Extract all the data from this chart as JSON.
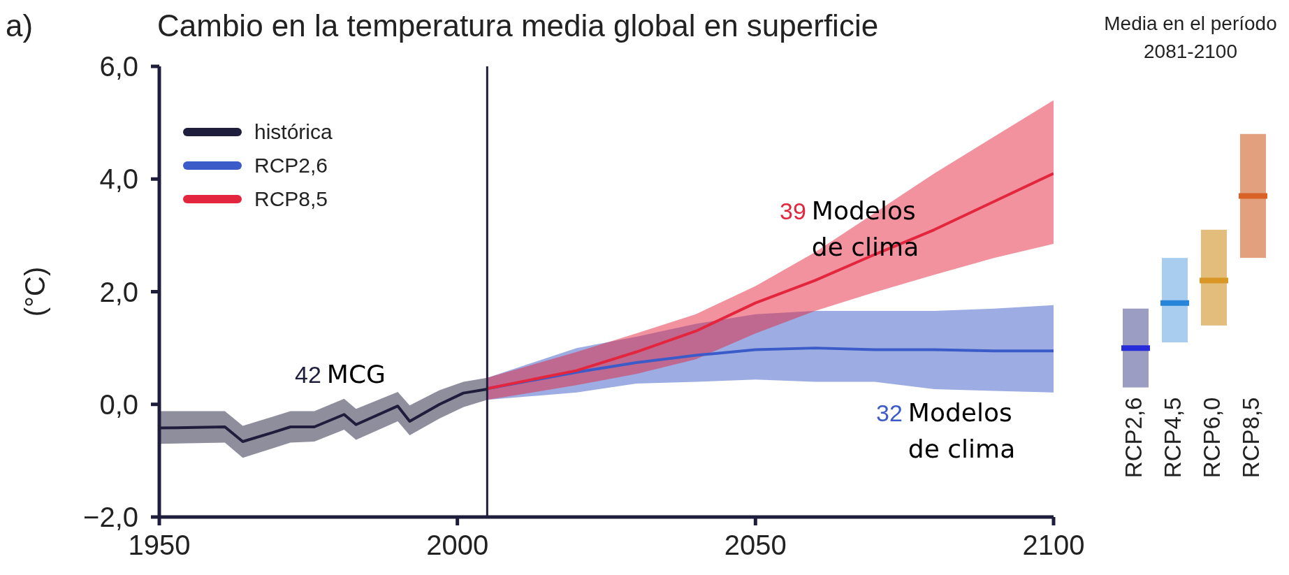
{
  "chart_data": [
    {
      "type": "line",
      "title": "Cambio en la temperatura media global en superficie",
      "ylabel": "(°C)",
      "xlim": [
        1950,
        2100
      ],
      "xticks": [
        1950,
        2000,
        2050,
        2100
      ],
      "ylim": [
        -2,
        6
      ],
      "yticks": [
        {
          "value": -2,
          "label": "−2,0"
        },
        {
          "value": 0,
          "label": "0,0"
        },
        {
          "value": 2,
          "label": "2,0"
        },
        {
          "value": 4,
          "label": "4,0"
        },
        {
          "value": 6,
          "label": "6,0"
        }
      ],
      "legend": "top left",
      "series": [
        {
          "name": "histórica",
          "color": "#1e1e3c",
          "x": [
            1950,
            1961,
            1964,
            1969,
            1972,
            1976,
            1981,
            1983,
            1990,
            1992,
            1997,
            2001,
            2005
          ],
          "values": [
            -0.42,
            -0.4,
            -0.66,
            -0.5,
            -0.4,
            -0.4,
            -0.18,
            -0.36,
            -0.03,
            -0.3,
            0.0,
            0.2,
            0.27
          ],
          "lower": [
            -0.7,
            -0.68,
            -0.95,
            -0.78,
            -0.68,
            -0.66,
            -0.45,
            -0.63,
            -0.3,
            -0.55,
            -0.25,
            -0.05,
            0.08
          ],
          "upper": [
            -0.12,
            -0.12,
            -0.38,
            -0.22,
            -0.12,
            -0.12,
            0.1,
            -0.08,
            0.22,
            -0.02,
            0.25,
            0.4,
            0.47
          ]
        },
        {
          "name": "RCP2,6",
          "color": "#3b5bc8",
          "x": [
            2005,
            2020,
            2030,
            2040,
            2050,
            2060,
            2070,
            2080,
            2090,
            2100
          ],
          "values": [
            0.28,
            0.57,
            0.74,
            0.87,
            0.97,
            1.0,
            0.97,
            0.97,
            0.95,
            0.95
          ],
          "lower": [
            0.08,
            0.21,
            0.37,
            0.4,
            0.44,
            0.4,
            0.4,
            0.27,
            0.24,
            0.21
          ],
          "upper": [
            0.47,
            1.0,
            1.2,
            1.43,
            1.6,
            1.66,
            1.66,
            1.66,
            1.7,
            1.76
          ]
        },
        {
          "name": "RCP8,5",
          "color": "#e3263e",
          "x": [
            2005,
            2020,
            2030,
            2040,
            2050,
            2060,
            2070,
            2080,
            2090,
            2100
          ],
          "values": [
            0.28,
            0.6,
            0.93,
            1.3,
            1.8,
            2.2,
            2.66,
            3.1,
            3.6,
            4.1
          ],
          "lower": [
            0.08,
            0.34,
            0.54,
            0.8,
            1.26,
            1.66,
            1.99,
            2.3,
            2.6,
            2.85
          ],
          "upper": [
            0.47,
            0.93,
            1.26,
            1.6,
            2.1,
            2.7,
            3.4,
            4.1,
            4.75,
            5.4
          ]
        }
      ],
      "ref_lines": [
        {
          "axis": "x",
          "value": 2005,
          "color": "#1e1e3c"
        }
      ],
      "annotations": [
        "a)",
        "42 MCG",
        "39 Modelos de clima",
        "32 Modelos de clima"
      ]
    },
    {
      "type": "box",
      "title": "Media en el período\n2081-2100",
      "categories": [
        "RCP2,6",
        "RCP4,5",
        "RCP6,0",
        "RCP8,5"
      ],
      "ylim": [
        -2,
        6
      ],
      "tick_labels": "x",
      "colors": [
        "#9c9dc2",
        "#a8cdee",
        "#e2bd7b",
        "#e2a07f"
      ],
      "boxes": [
        {
          "low": 0.3,
          "q1": 0.3,
          "median": 1.0,
          "q3": 1.7,
          "high": 1.7
        },
        {
          "low": 1.1,
          "q1": 1.1,
          "median": 1.8,
          "q3": 2.6,
          "high": 2.6
        },
        {
          "low": 1.4,
          "q1": 1.4,
          "median": 2.2,
          "q3": 3.1,
          "high": 3.1
        },
        {
          "low": 2.6,
          "q1": 2.6,
          "median": 3.7,
          "q3": 4.8,
          "high": 4.8
        }
      ]
    }
  ]
}
